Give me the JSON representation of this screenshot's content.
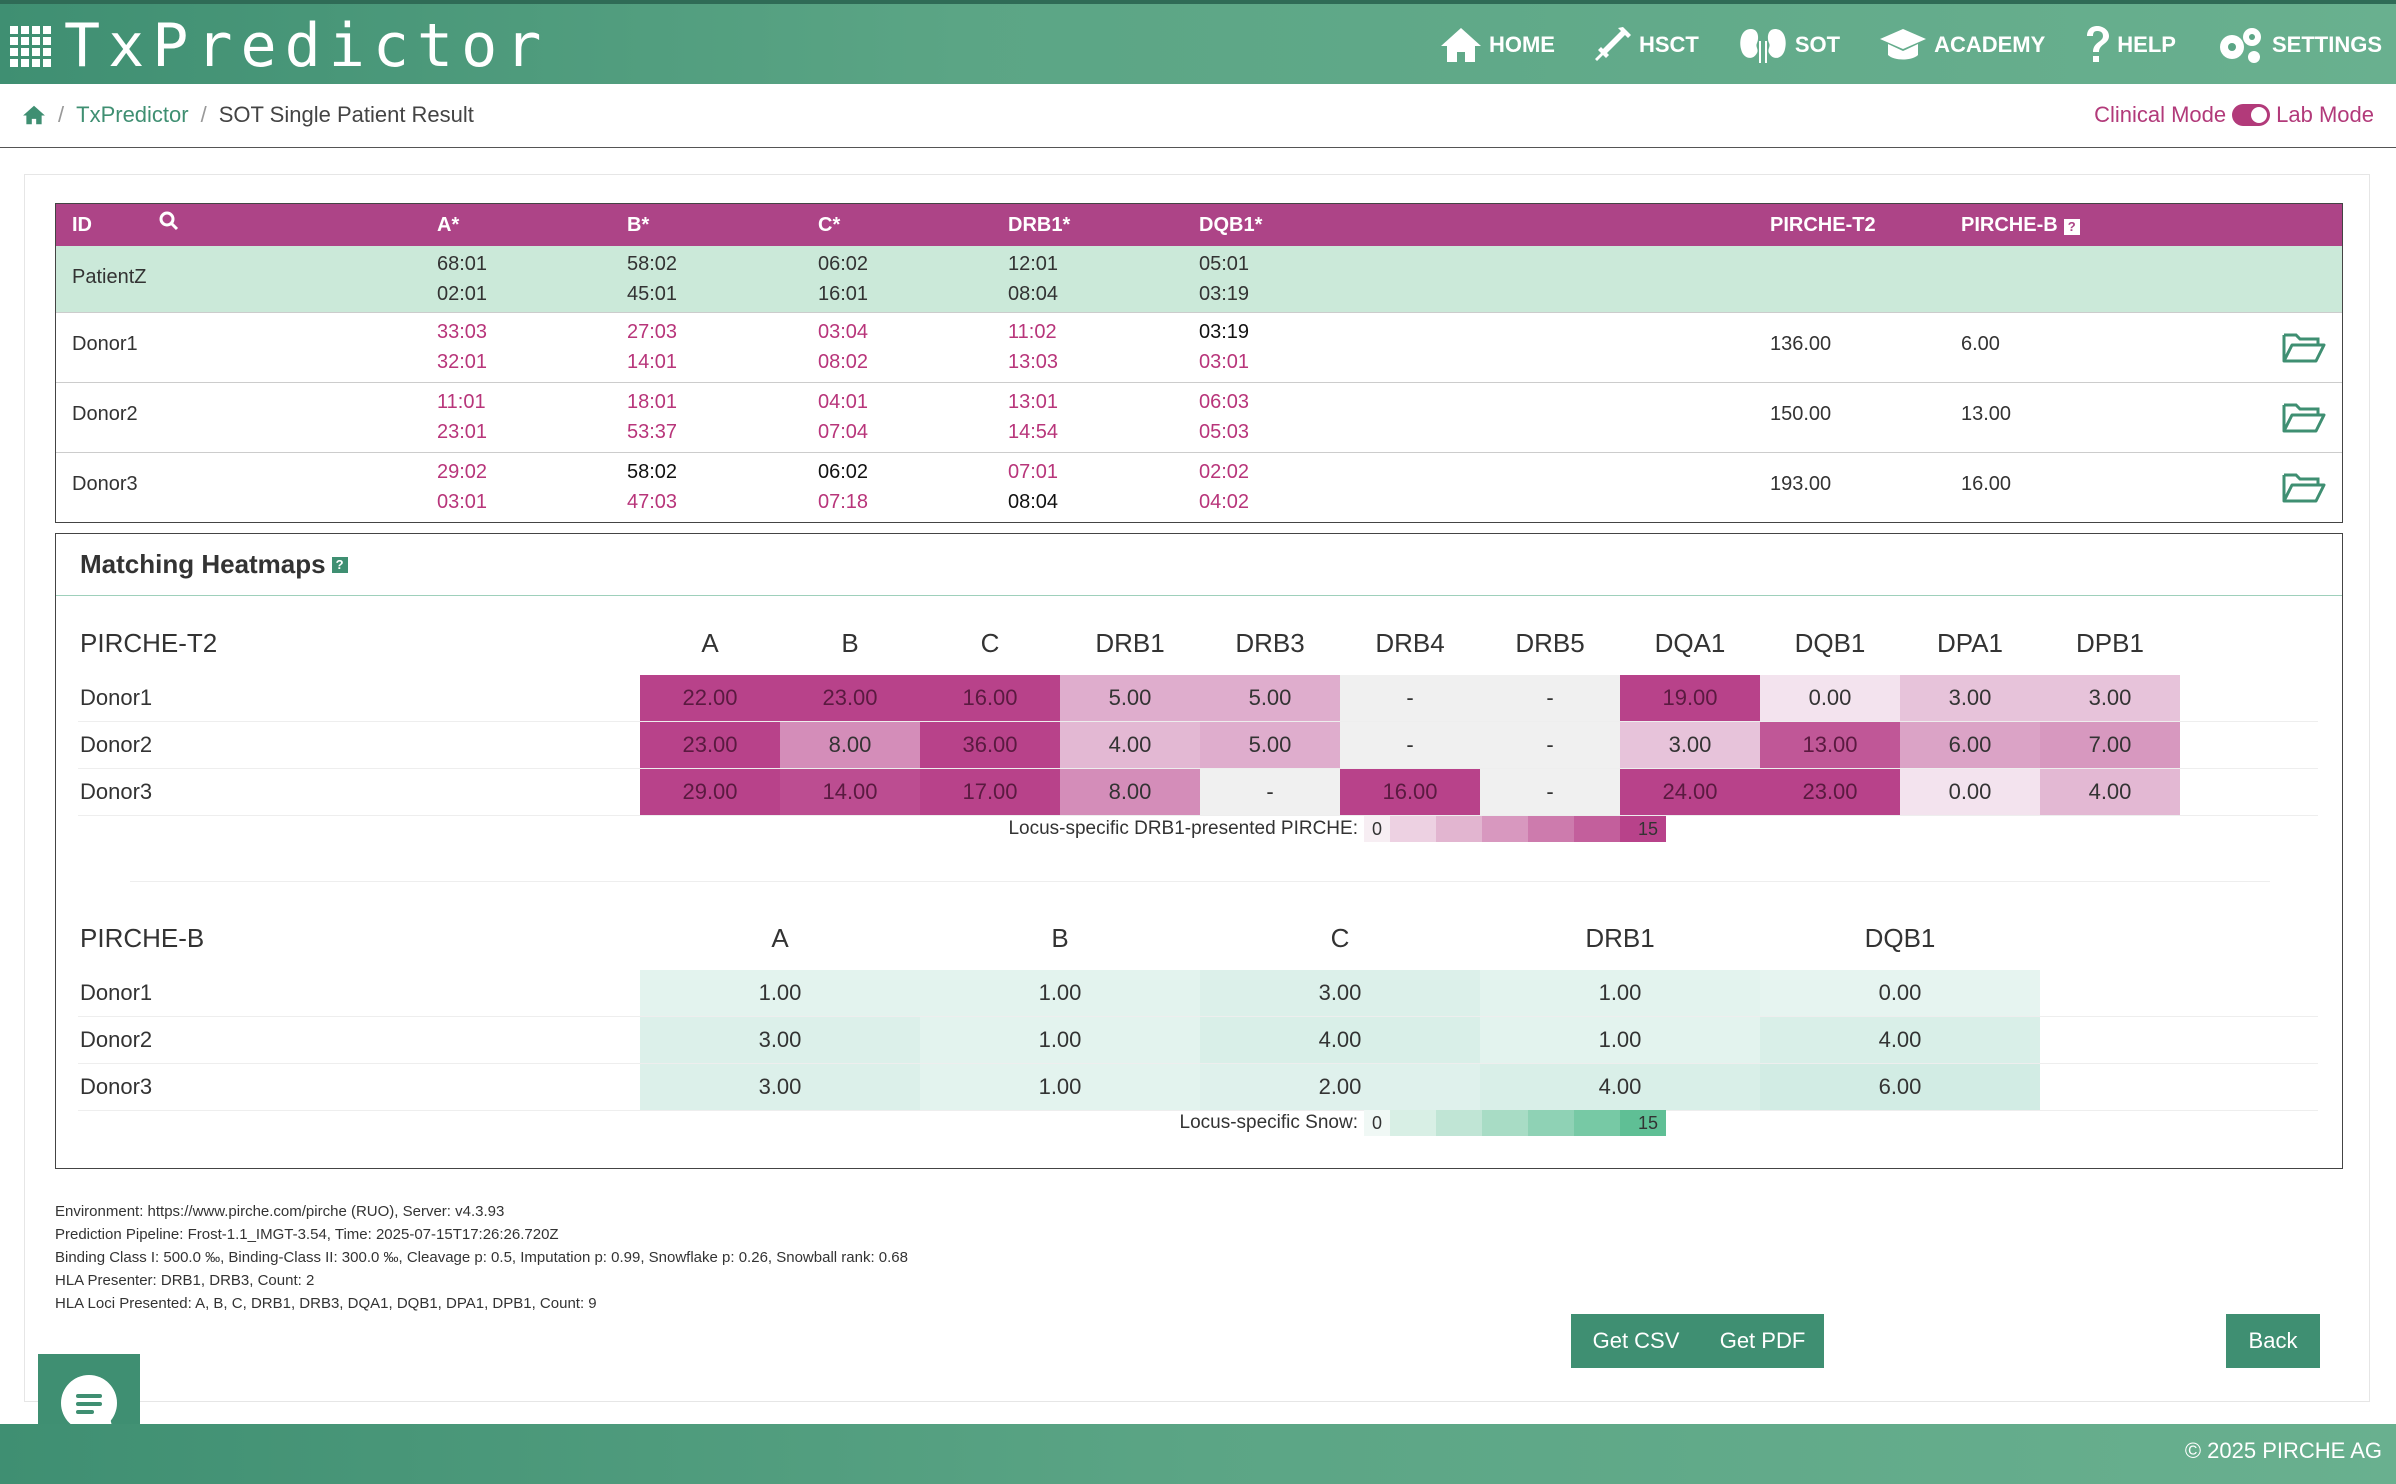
{
  "app": {
    "title": "TxPredictor"
  },
  "nav": [
    {
      "label": "HOME",
      "icon": "home-icon"
    },
    {
      "label": "HSCT",
      "icon": "syringe-icon"
    },
    {
      "label": "SOT",
      "icon": "kidney-icon"
    },
    {
      "label": "ACADEMY",
      "icon": "graduation-cap-icon"
    },
    {
      "label": "HELP",
      "icon": "question-icon"
    },
    {
      "label": "SETTINGS",
      "icon": "gears-icon"
    }
  ],
  "breadcrumb": {
    "root": "TxPredictor",
    "current": "SOT Single Patient Result"
  },
  "mode": {
    "clinical": "Clinical Mode",
    "lab": "Lab Mode"
  },
  "hla_table": {
    "headers": {
      "id": "ID",
      "a": "A*",
      "b": "B*",
      "c": "C*",
      "drb1": "DRB1*",
      "dqb1": "DQB1*",
      "t2": "PIRCHE-T2",
      "pb": "PIRCHE-B"
    },
    "patient": {
      "id": "PatientZ",
      "a": [
        "68:01",
        "02:01"
      ],
      "b": [
        "58:02",
        "45:01"
      ],
      "c": [
        "06:02",
        "16:01"
      ],
      "drb1": [
        "12:01",
        "08:04"
      ],
      "dqb1": [
        "05:01",
        "03:19"
      ]
    },
    "donors": [
      {
        "id": "Donor1",
        "a": [
          "33:03",
          "32:01"
        ],
        "a_m": [
          true,
          true
        ],
        "b": [
          "27:03",
          "14:01"
        ],
        "b_m": [
          true,
          true
        ],
        "c": [
          "03:04",
          "08:02"
        ],
        "c_m": [
          true,
          true
        ],
        "drb1": [
          "11:02",
          "13:03"
        ],
        "drb1_m": [
          true,
          true
        ],
        "dqb1": [
          "03:19",
          "03:01"
        ],
        "dqb1_m": [
          false,
          true
        ],
        "t2": "136.00",
        "pb": "6.00"
      },
      {
        "id": "Donor2",
        "a": [
          "11:01",
          "23:01"
        ],
        "a_m": [
          true,
          true
        ],
        "b": [
          "18:01",
          "53:37"
        ],
        "b_m": [
          true,
          true
        ],
        "c": [
          "04:01",
          "07:04"
        ],
        "c_m": [
          true,
          true
        ],
        "drb1": [
          "13:01",
          "14:54"
        ],
        "drb1_m": [
          true,
          true
        ],
        "dqb1": [
          "06:03",
          "05:03"
        ],
        "dqb1_m": [
          true,
          true
        ],
        "t2": "150.00",
        "pb": "13.00"
      },
      {
        "id": "Donor3",
        "a": [
          "29:02",
          "03:01"
        ],
        "a_m": [
          true,
          true
        ],
        "b": [
          "58:02",
          "47:03"
        ],
        "b_m": [
          false,
          true
        ],
        "c": [
          "06:02",
          "07:18"
        ],
        "c_m": [
          false,
          true
        ],
        "drb1": [
          "07:01",
          "08:04"
        ],
        "drb1_m": [
          true,
          false
        ],
        "dqb1": [
          "02:02",
          "04:02"
        ],
        "dqb1_m": [
          true,
          true
        ],
        "t2": "193.00",
        "pb": "16.00"
      }
    ]
  },
  "heatmaps": {
    "section_title": "Matching Heatmaps",
    "t2": {
      "title": "PIRCHE-T2",
      "loci": [
        "A",
        "B",
        "C",
        "DRB1",
        "DRB3",
        "DRB4",
        "DRB5",
        "DQA1",
        "DQB1",
        "DPA1",
        "DPB1"
      ],
      "rows": [
        {
          "label": "Donor1",
          "values": [
            "22.00",
            "23.00",
            "16.00",
            "5.00",
            "5.00",
            "-",
            "-",
            "19.00",
            "0.00",
            "3.00",
            "3.00"
          ]
        },
        {
          "label": "Donor2",
          "values": [
            "23.00",
            "8.00",
            "36.00",
            "4.00",
            "5.00",
            "-",
            "-",
            "3.00",
            "13.00",
            "6.00",
            "7.00"
          ]
        },
        {
          "label": "Donor3",
          "values": [
            "29.00",
            "14.00",
            "17.00",
            "8.00",
            "-",
            "16.00",
            "-",
            "24.00",
            "23.00",
            "0.00",
            "4.00"
          ]
        }
      ],
      "legend_label": "Locus-specific DRB1-presented PIRCHE:",
      "legend_min": "0",
      "legend_max": "15"
    },
    "b": {
      "title": "PIRCHE-B",
      "loci": [
        "A",
        "B",
        "C",
        "DRB1",
        "DQB1"
      ],
      "rows": [
        {
          "label": "Donor1",
          "values": [
            "1.00",
            "1.00",
            "3.00",
            "1.00",
            "0.00"
          ]
        },
        {
          "label": "Donor2",
          "values": [
            "3.00",
            "1.00",
            "4.00",
            "1.00",
            "4.00"
          ]
        },
        {
          "label": "Donor3",
          "values": [
            "3.00",
            "1.00",
            "2.00",
            "4.00",
            "6.00"
          ]
        }
      ],
      "legend_label": "Locus-specific Snow:",
      "legend_min": "0",
      "legend_max": "15"
    }
  },
  "info": {
    "environment": "Environment: https://www.pirche.com/pirche (RUO), Server: v4.3.93",
    "pipeline": "Prediction Pipeline: Frost-1.1_IMGT-3.54, Time: 2025-07-15T17:26:26.720Z",
    "binding": "Binding Class I: 500.0 ‰, Binding-Class II: 300.0 ‰, Cleavage p: 0.5, Imputation p: 0.99, Snowflake p: 0.26, Snowball rank: 0.68",
    "presenter": "HLA Presenter: DRB1, DRB3, Count: 2",
    "loci": "HLA Loci Presented: A, B, C, DRB1, DRB3, DQA1, DQB1, DPA1, DPB1, Count: 9"
  },
  "buttons": {
    "csv": "Get CSV",
    "pdf": "Get PDF",
    "back": "Back"
  },
  "footer": {
    "copyright": "© 2025 PIRCHE AG"
  },
  "colors": {
    "brand": "#3f8f72",
    "magenta": "#ad4487",
    "patient_row": "#cbe9d9",
    "mismatch": "#b8357a"
  }
}
